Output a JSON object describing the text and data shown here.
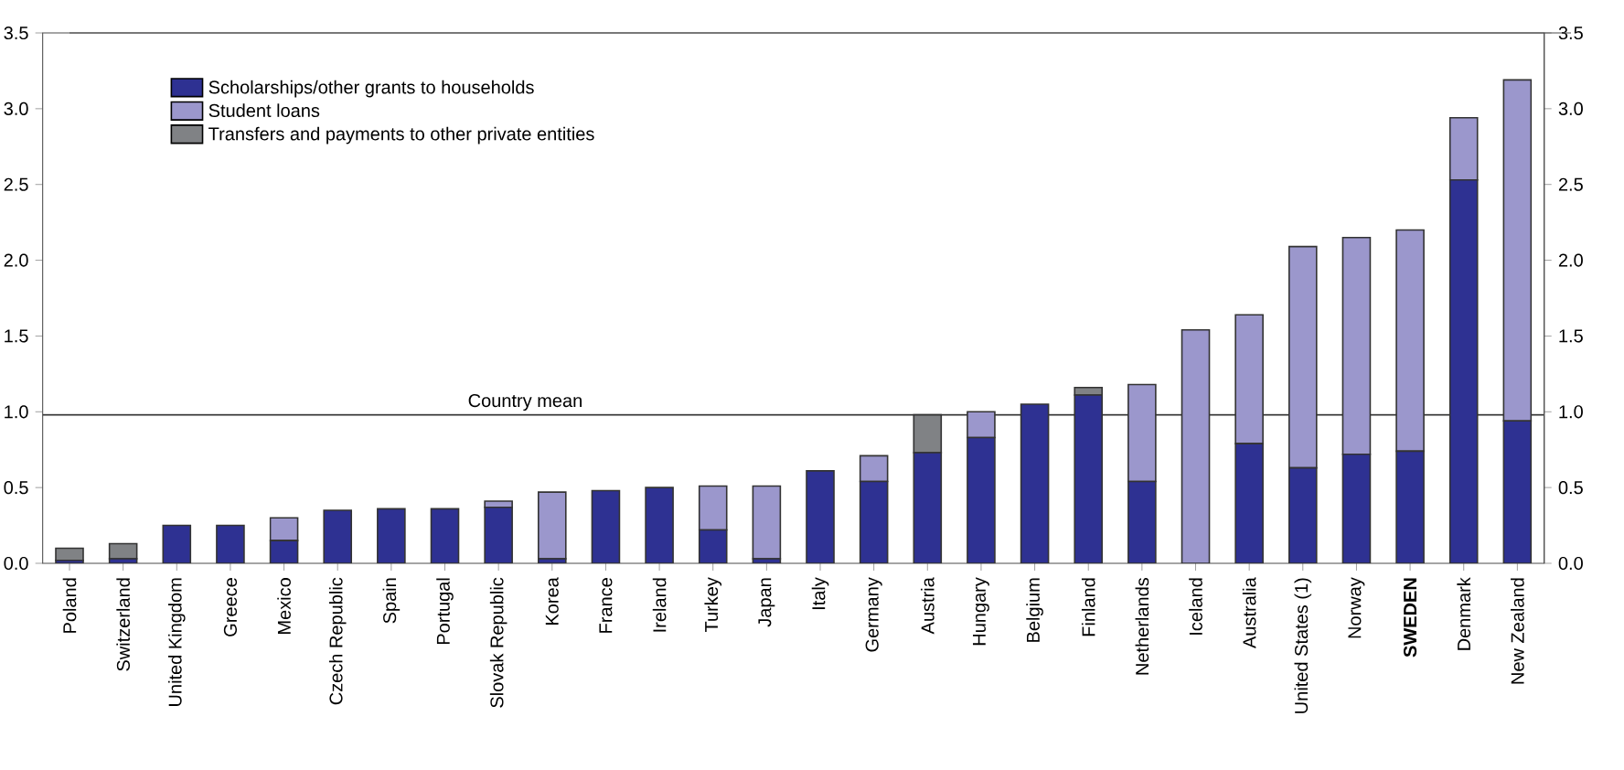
{
  "chart_data": {
    "type": "bar",
    "stacked": true,
    "legend": "top left",
    "grid": false,
    "categories": [
      "Poland",
      "Switzerland",
      "United Kingdom",
      "Greece",
      "Mexico",
      "Czech Republic",
      "Spain",
      "Portugal",
      "Slovak Republic",
      "Korea",
      "France",
      "Ireland",
      "Turkey",
      "Japan",
      "Italy",
      "Germany",
      "Austria",
      "Hungary",
      "Belgium",
      "Finland",
      "Netherlands",
      "Iceland",
      "Australia",
      "United States (1)",
      "Norway",
      "**SWEDEN**",
      "Denmark",
      "New Zealand"
    ],
    "series": [
      {
        "name": "Scholarships/other grants to households",
        "color": "#2e3192",
        "values": [
          0.02,
          0.03,
          0.25,
          0.25,
          0.15,
          0.35,
          0.36,
          0.36,
          0.37,
          0.03,
          0.48,
          0.5,
          0.22,
          0.03,
          0.61,
          0.54,
          0.73,
          0.83,
          1.05,
          1.11,
          0.54,
          0.0,
          0.79,
          0.63,
          0.72,
          0.74,
          2.53,
          0.94
        ]
      },
      {
        "name": "Student loans",
        "color": "#9b97cc",
        "values": [
          0.0,
          0.0,
          0.0,
          0.0,
          0.15,
          0.0,
          0.0,
          0.0,
          0.04,
          0.44,
          0.0,
          0.0,
          0.29,
          0.48,
          0.0,
          0.17,
          0.0,
          0.17,
          0.0,
          0.0,
          0.64,
          1.54,
          0.85,
          1.46,
          1.43,
          1.46,
          0.41,
          2.25
        ]
      },
      {
        "name": "Transfers and payments to other private entities",
        "color": "#808285",
        "values": [
          0.08,
          0.1,
          0.0,
          0.0,
          0.0,
          0.0,
          0.0,
          0.0,
          0.0,
          0.0,
          0.0,
          0.0,
          0.0,
          0.0,
          0.0,
          0.0,
          0.25,
          0.0,
          0.0,
          0.05,
          0.0,
          0.0,
          0.0,
          0.0,
          0.0,
          0.0,
          0.0,
          0.0
        ]
      }
    ],
    "ylim": [
      0,
      3.5
    ],
    "yticks": [
      {
        "value": 0,
        "label": "0.0"
      },
      {
        "value": 0.5,
        "label": "0.5"
      },
      {
        "value": 1,
        "label": "1.0"
      },
      {
        "value": 1.5,
        "label": "1.5"
      },
      {
        "value": 2,
        "label": "2.0"
      },
      {
        "value": 2.5,
        "label": "2.5"
      },
      {
        "value": 3,
        "label": "3.0"
      },
      {
        "value": 3.5,
        "label": "3.5"
      }
    ],
    "y2lim": [
      0,
      3.5
    ],
    "y2ticks": [
      {
        "value": 0,
        "label": "0.0"
      },
      {
        "value": 0.5,
        "label": "0.5"
      },
      {
        "value": 1,
        "label": "1.0"
      },
      {
        "value": 1.5,
        "label": "1.5"
      },
      {
        "value": 2,
        "label": "2.0"
      },
      {
        "value": 2.5,
        "label": "2.5"
      },
      {
        "value": 3,
        "label": "3.0"
      },
      {
        "value": 3.5,
        "label": "3.5"
      }
    ],
    "ref_lines": [
      {
        "axis": "y",
        "value": 0.98,
        "label": "Country mean",
        "color": "#333333"
      }
    ]
  }
}
